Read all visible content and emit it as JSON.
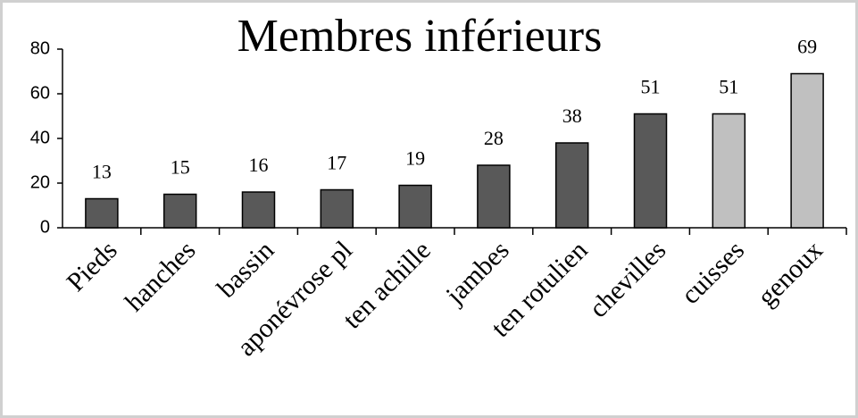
{
  "chart_data": {
    "type": "bar",
    "title": "Membres inférieurs",
    "categories": [
      "Pieds",
      "hanches",
      "bassin",
      "aponévrose pl",
      "ten achille",
      "jambes",
      "ten rotulien",
      "chevilles",
      "cuisses",
      "genoux"
    ],
    "values": [
      13,
      15,
      16,
      17,
      19,
      28,
      38,
      51,
      51,
      69
    ],
    "colors": [
      "#595959",
      "#595959",
      "#595959",
      "#595959",
      "#595959",
      "#595959",
      "#595959",
      "#595959",
      "#c0c0c0",
      "#c0c0c0"
    ],
    "ylim": [
      0,
      80
    ],
    "yticks": [
      0,
      20,
      40,
      60,
      80
    ],
    "grid": false
  }
}
